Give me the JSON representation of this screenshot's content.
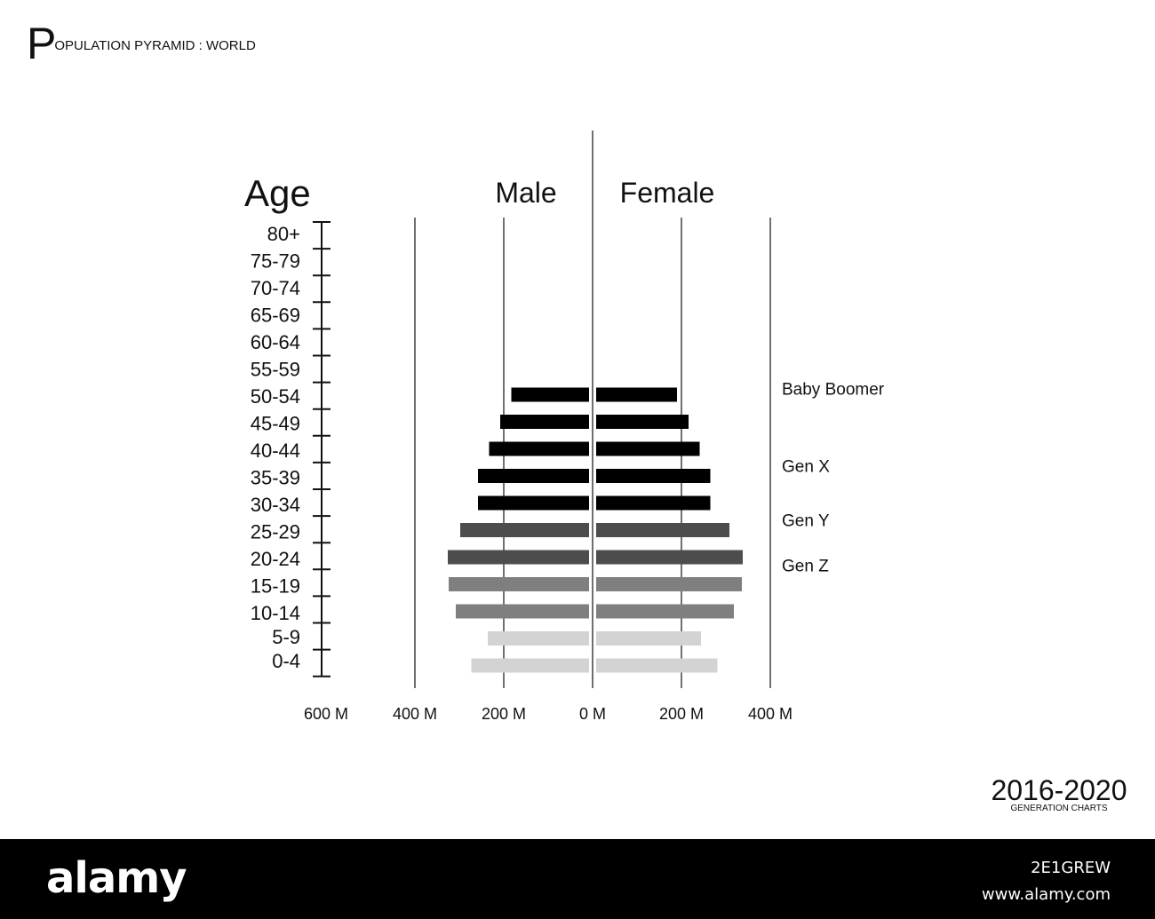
{
  "title": {
    "first_letter": "P",
    "rest": "OPULATION PYRAMID : WORLD"
  },
  "period": {
    "years": "2016-2020",
    "subtitle": "GENERATION CHARTS"
  },
  "footer": {
    "logo": "alamy",
    "image_id": "2E1GREW",
    "site": "www.alamy.com"
  },
  "colors": {
    "boomer": "#000000",
    "genx": "#4d4d4d",
    "geny": "#7f7f7f",
    "genz": "#d3d3d3"
  },
  "chart_data": {
    "type": "bar",
    "subtype": "population-pyramid",
    "title": "POPULATION PYRAMID : WORLD",
    "ylabel": "Age",
    "xlabel": "",
    "categories": [
      "80+",
      "75-79",
      "70-74",
      "65-69",
      "60-64",
      "55-59",
      "50-54",
      "45-49",
      "40-44",
      "35-39",
      "30-34",
      "25-29",
      "20-24",
      "15-19",
      "10-14",
      "5-9",
      "0-4"
    ],
    "x_tick_labels": [
      "600 M",
      "400 M",
      "200 M",
      "0 M",
      "200 M",
      "400 M"
    ],
    "x_ticks_millions": [
      -600,
      -400,
      -200,
      0,
      200,
      400
    ],
    "xlim_millions": [
      -400,
      400
    ],
    "series": [
      {
        "name": "Male",
        "values": [
          null,
          null,
          null,
          175,
          200,
          225,
          250,
          250,
          290,
          318,
          316,
          300,
          228,
          265,
          null,
          null,
          null
        ]
      },
      {
        "name": "Female",
        "values": [
          null,
          null,
          null,
          182,
          208,
          233,
          257,
          257,
          300,
          330,
          328,
          310,
          236,
          273,
          null,
          null,
          null
        ]
      }
    ],
    "generations": [
      {
        "name": "Baby Boomer",
        "color": "#000000",
        "ages": [
          "65-69",
          "60-64",
          "55-59",
          "50-54",
          "45-49"
        ]
      },
      {
        "name": "Gen X",
        "color": "#4d4d4d",
        "ages": [
          "40-44",
          "35-39"
        ]
      },
      {
        "name": "Gen Y",
        "color": "#7f7f7f",
        "ages": [
          "30-34",
          "25-29"
        ]
      },
      {
        "name": "Gen Z",
        "color": "#d3d3d3",
        "ages": [
          "20-24",
          "15-19"
        ]
      }
    ],
    "grid": true
  }
}
